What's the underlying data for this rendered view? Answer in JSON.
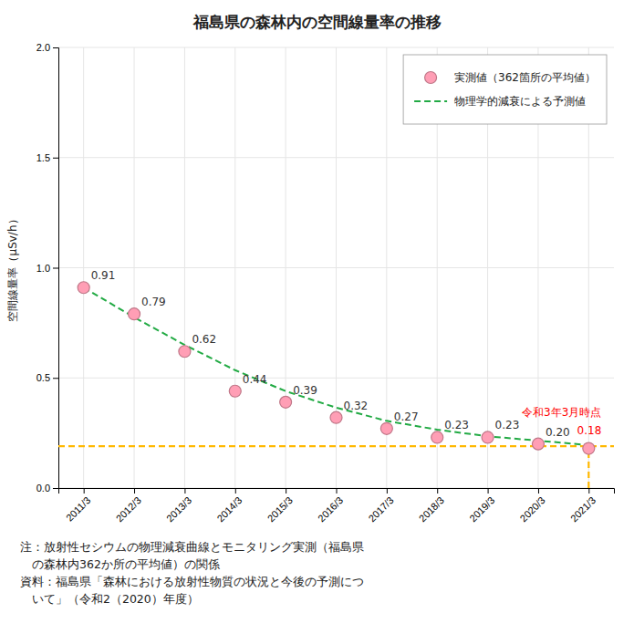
{
  "chart_data": {
    "type": "line",
    "title": "福島県の森林内の空間線量率の推移",
    "y_label": "空間線量率（μSv/h）",
    "categories": [
      "2011/3",
      "2012/3",
      "2013/3",
      "2014/3",
      "2015/3",
      "2016/3",
      "2017/3",
      "2018/3",
      "2019/3",
      "2020/3",
      "2021/3"
    ],
    "series": [
      {
        "name": "実測値（362箇所の平均値）",
        "type": "scatter",
        "marker": "circle",
        "color": "#FF9EB5",
        "values": [
          0.91,
          0.79,
          0.62,
          0.44,
          0.39,
          0.32,
          0.27,
          0.23,
          0.23,
          0.2,
          0.18
        ],
        "value_labels": [
          "0.91",
          "0.79",
          "0.62",
          "0.44",
          "0.39",
          "0.32",
          "0.27",
          "0.23",
          "0.23",
          "0.20",
          null
        ]
      },
      {
        "name": "物理学的減衰による予測値",
        "type": "line",
        "line_style": "dashed",
        "color": "#22AA44",
        "values": [
          0.91,
          0.775,
          0.65,
          0.535,
          0.44,
          0.365,
          0.305,
          0.265,
          0.235,
          0.215,
          0.195
        ]
      }
    ],
    "reference_line": {
      "y": 0.19,
      "color": "#FFB800",
      "line_style": "dashed"
    },
    "vertical_line": {
      "category": "2021/3",
      "y": [
        0,
        0.18
      ],
      "color": "#FFB800",
      "line_style": "dashed"
    },
    "annotations": [
      {
        "text": "令和3年3月時点",
        "color": "#FF0000"
      },
      {
        "text": "0.18",
        "color": "#FF0000"
      }
    ],
    "notes": [
      "注：放射性セシウムの物理減衰曲線とモニタリング実測（福島県",
      "　の森林内362か所の平均値）の関係",
      "資料：福島県「森林における放射性物質の状況と今後の予測につ",
      "　いて」（令和2（2020）年度）"
    ],
    "ylim": [
      0,
      2.0
    ],
    "yticks": [
      {
        "value": 0.0,
        "label": "0.0"
      },
      0.5,
      {
        "value": 1.0,
        "label": "1.0"
      },
      1.5,
      {
        "value": 2.0,
        "label": "2.0"
      }
    ],
    "grid": true,
    "legend": "upper right",
    "data_labels": true
  }
}
